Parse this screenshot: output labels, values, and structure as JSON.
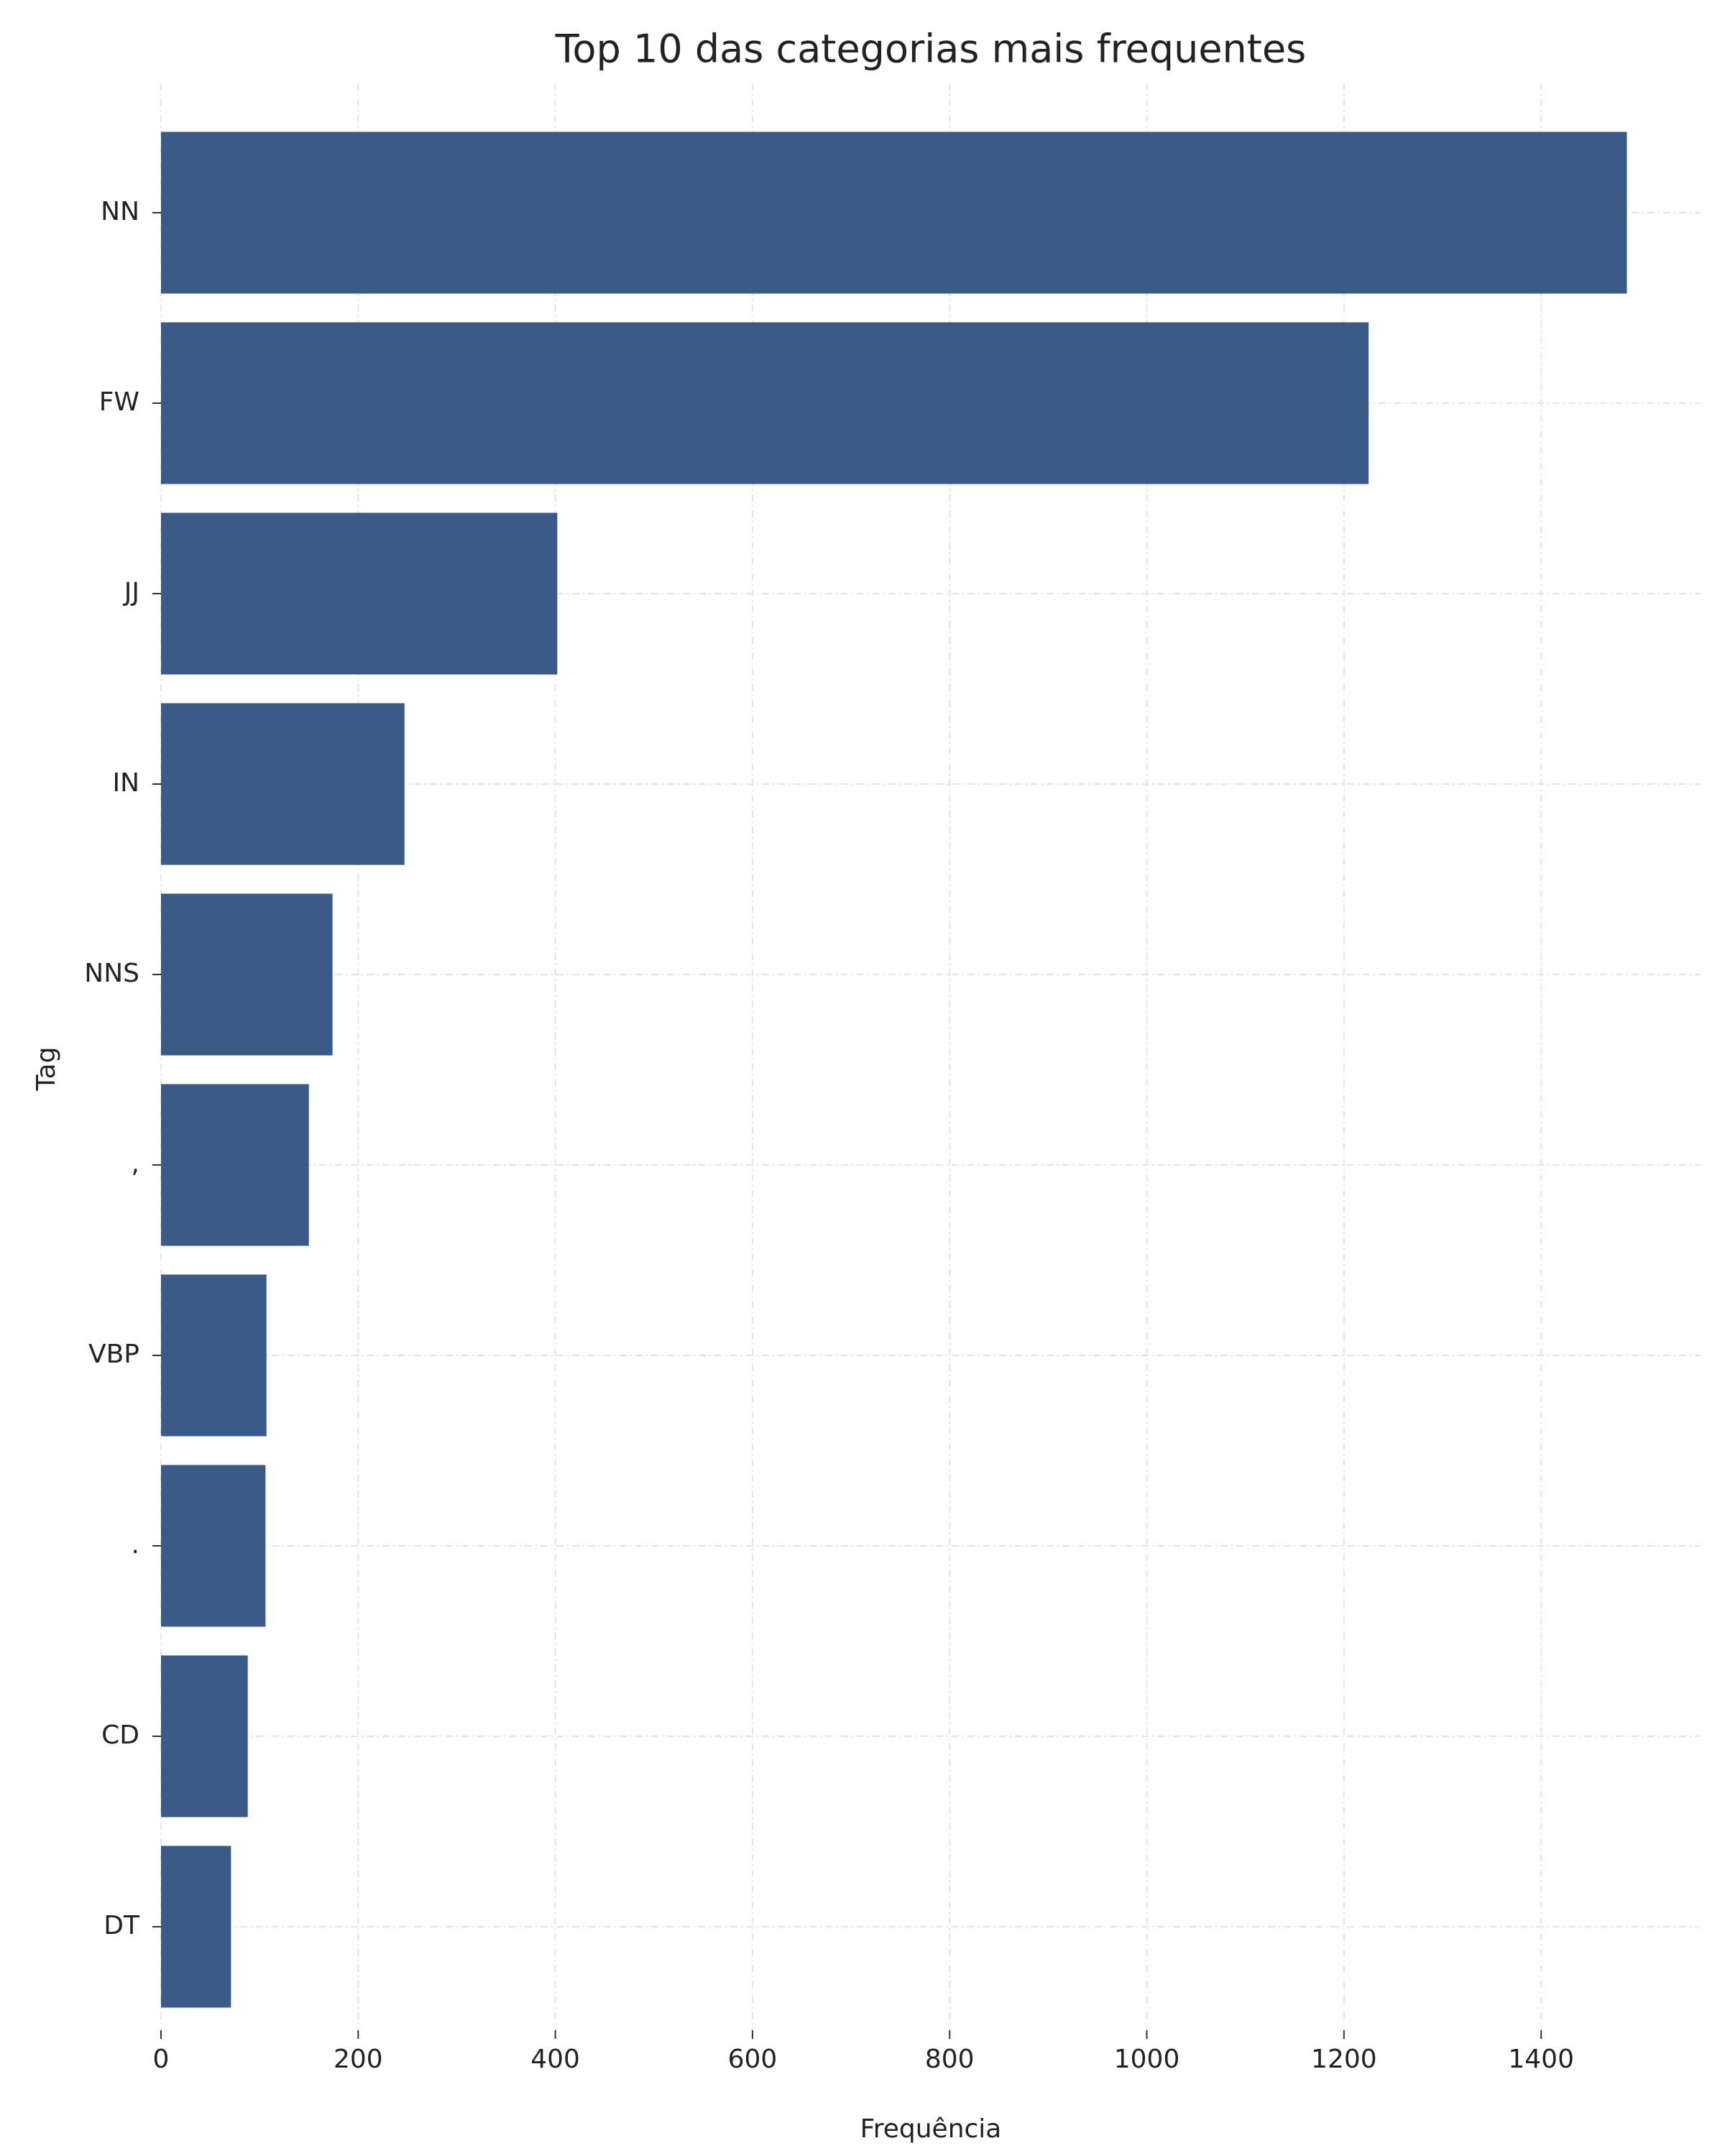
{
  "chart_data": {
    "type": "barh",
    "title": "Top 10 das categorias mais frequentes",
    "xlabel": "Frequência",
    "ylabel": "Tag",
    "categories": [
      "NN",
      "FW",
      "JJ",
      "IN",
      "NNS",
      ",",
      "VBP",
      ".",
      "CD",
      "DT"
    ],
    "values": [
      1487,
      1225,
      402,
      247,
      174,
      150,
      107,
      106,
      88,
      71
    ],
    "color": "#3a5a87",
    "xlim": [
      0,
      1561
    ],
    "xticks": [
      0,
      200,
      400,
      600,
      800,
      1000,
      1200,
      1400
    ],
    "grid": true
  }
}
